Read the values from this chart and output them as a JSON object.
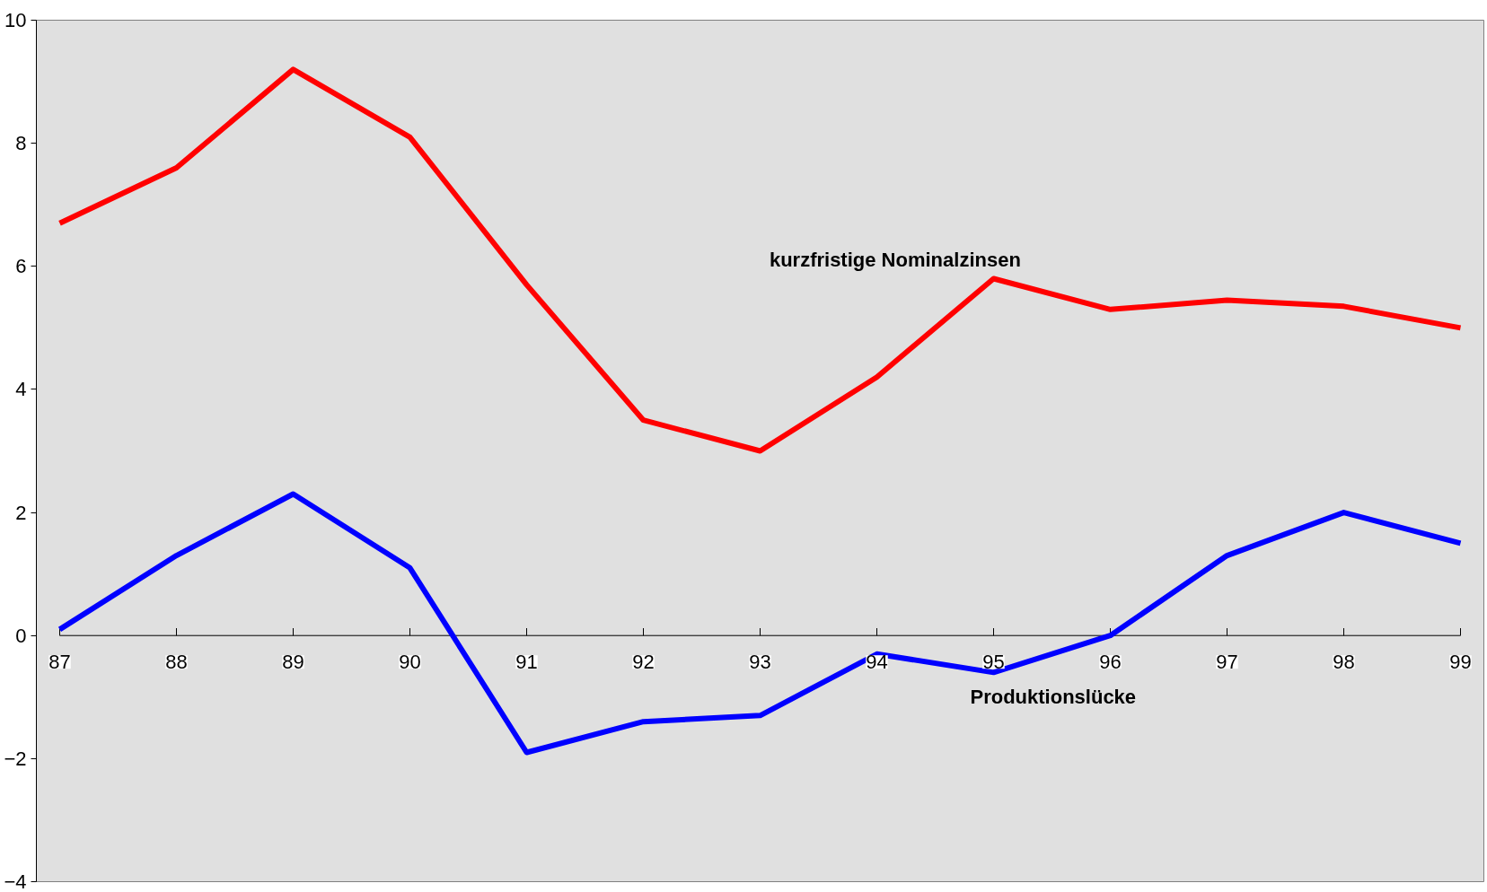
{
  "chart_data": {
    "type": "line",
    "categories": [
      "87",
      "88",
      "89",
      "90",
      "91",
      "92",
      "93",
      "94",
      "95",
      "96",
      "97",
      "98",
      "99"
    ],
    "series": [
      {
        "name": "kurzfristige Nominalzinsen",
        "color": "#ff0000",
        "values": [
          6.7,
          7.6,
          9.2,
          8.1,
          5.7,
          3.5,
          3.0,
          4.2,
          5.8,
          5.3,
          5.45,
          5.35,
          5.0
        ]
      },
      {
        "name": "Produktionslücke",
        "color": "#0000ff",
        "values": [
          0.1,
          1.3,
          2.3,
          1.1,
          -1.9,
          -1.4,
          -1.3,
          -0.3,
          -0.6,
          0.0,
          1.3,
          2.0,
          1.5
        ]
      }
    ],
    "ylim": [
      -4,
      10
    ],
    "yticks": [
      -4,
      -2,
      0,
      2,
      4,
      6,
      8,
      10
    ],
    "grid": false,
    "legend": false,
    "marker": "none",
    "line_style": "solid"
  }
}
